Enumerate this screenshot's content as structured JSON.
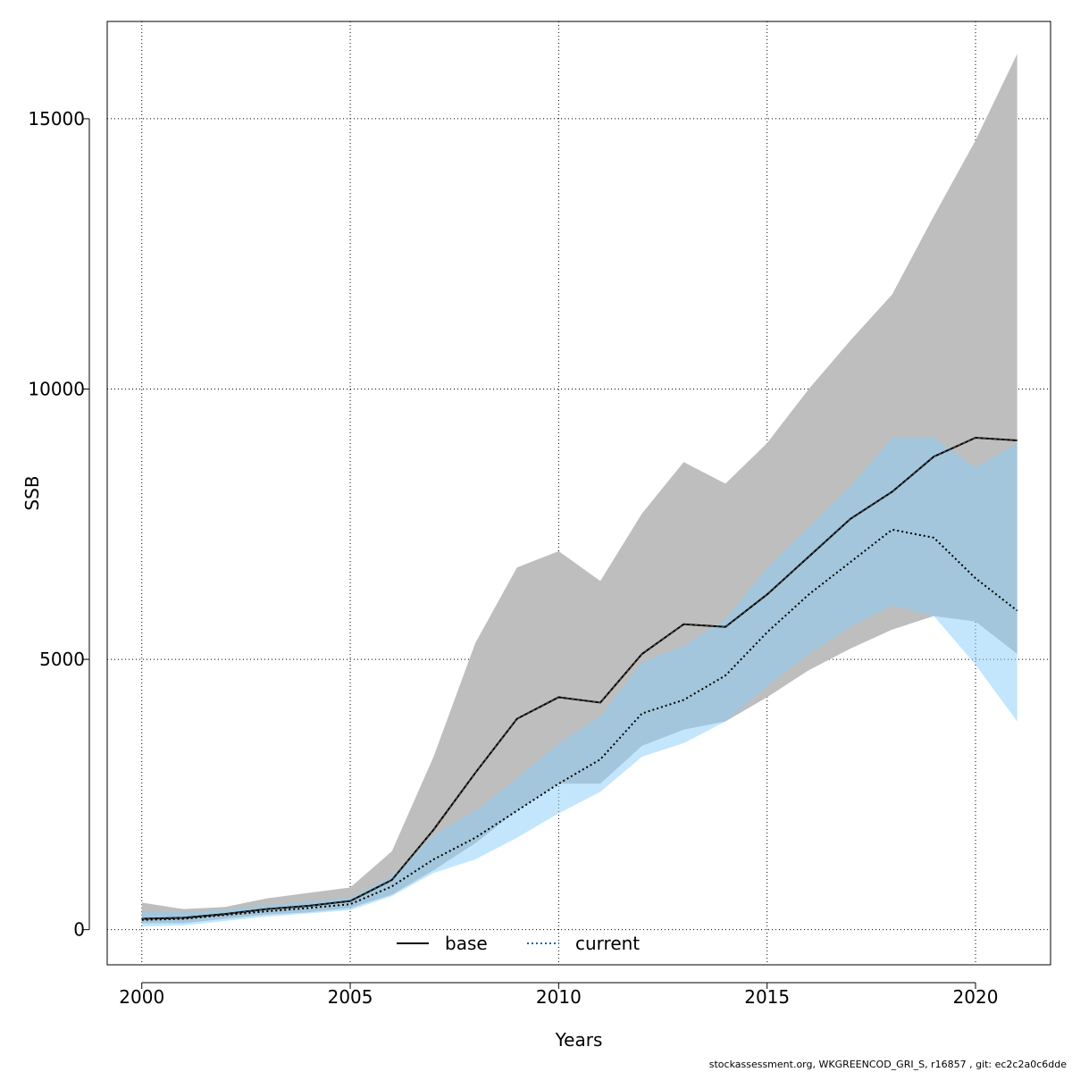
{
  "chart_data": {
    "type": "area",
    "xlabel": "Years",
    "ylabel": "SSB",
    "xlim": [
      1999.17,
      2021.8
    ],
    "ylim": [
      -650,
      16800
    ],
    "x_ticks": [
      2000,
      2005,
      2010,
      2015,
      2020
    ],
    "y_ticks": [
      0,
      5000,
      10000,
      15000
    ],
    "grid": true,
    "legend_position": "bottom-center",
    "x": [
      2000,
      2001,
      2002,
      2003,
      2004,
      2005,
      2006,
      2007,
      2008,
      2009,
      2010,
      2011,
      2012,
      2013,
      2014,
      2015,
      2016,
      2017,
      2018,
      2019,
      2020,
      2021
    ],
    "series": [
      {
        "name": "base",
        "line_style": "solid",
        "line_color": "#000000",
        "band_color": "#bebebe",
        "values": [
          200,
          220,
          290,
          380,
          440,
          530,
          920,
          1850,
          2900,
          3900,
          4300,
          4200,
          5100,
          5650,
          5600,
          6200,
          6900,
          7600,
          8100,
          8750,
          9100,
          9050
        ],
        "lower": [
          120,
          120,
          200,
          280,
          320,
          400,
          650,
          1100,
          1600,
          2200,
          2700,
          2700,
          3400,
          3700,
          3850,
          4300,
          4800,
          5200,
          5550,
          5800,
          5700,
          5100
        ],
        "upper": [
          500,
          380,
          420,
          580,
          680,
          780,
          1450,
          3200,
          5300,
          6700,
          7000,
          6450,
          7700,
          8650,
          8250,
          9000,
          10000,
          10900,
          11750,
          13200,
          14600,
          16200
        ]
      },
      {
        "name": "current",
        "line_style": "dotted",
        "line_color": "#000000",
        "band_color": "#87cefa",
        "values": [
          180,
          200,
          270,
          340,
          400,
          470,
          800,
          1300,
          1700,
          2200,
          2700,
          3150,
          4000,
          4250,
          4700,
          5500,
          6200,
          6800,
          7400,
          7250,
          6500,
          5900
        ],
        "lower": [
          60,
          80,
          160,
          240,
          300,
          360,
          620,
          1050,
          1300,
          1700,
          2150,
          2550,
          3200,
          3450,
          3850,
          4500,
          5100,
          5600,
          6000,
          5800,
          4900,
          3850
        ],
        "upper": [
          330,
          330,
          370,
          460,
          530,
          590,
          1000,
          1750,
          2200,
          2800,
          3450,
          3950,
          4950,
          5250,
          5750,
          6700,
          7450,
          8200,
          9100,
          9100,
          8550,
          9000
        ]
      }
    ]
  },
  "footer": "stockassessment.org, WKGREENCOD_GRI_S, r16857 , git: ec2c2a0c6dde"
}
